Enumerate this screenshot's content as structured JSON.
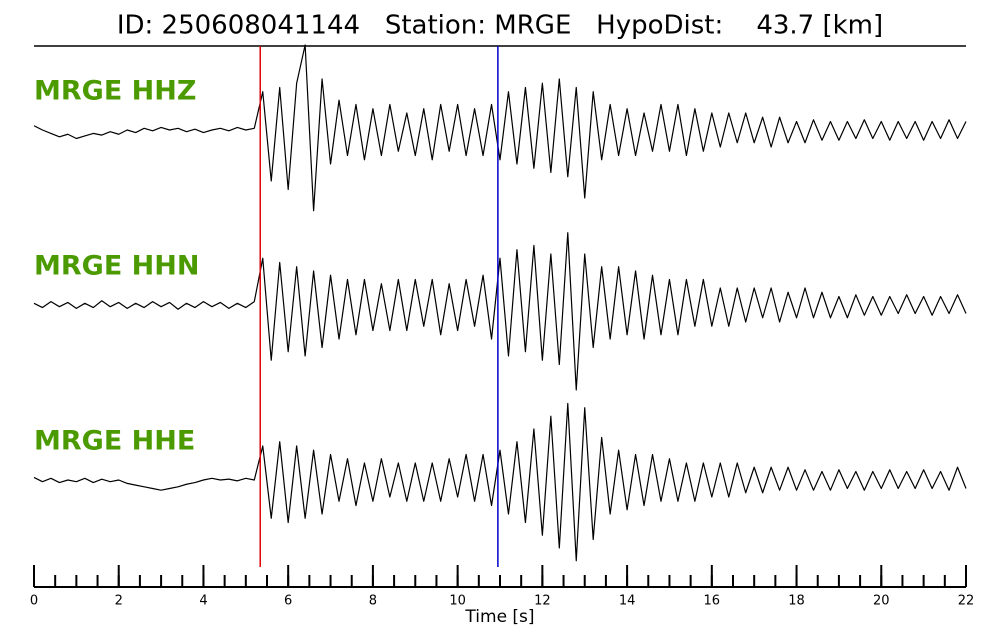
{
  "chart_data": {
    "type": "seismogram",
    "title": "ID: 250608041144   Station: MRGE   HypoDist:    43.7 [km]",
    "xlabel": "Time [s]",
    "xlim": [
      0,
      22
    ],
    "xticks": [
      0,
      2,
      4,
      6,
      8,
      10,
      12,
      14,
      16,
      18,
      20,
      22
    ],
    "xminorticks": [
      0,
      0.5,
      1,
      1.5,
      2,
      2.5,
      3,
      3.5,
      4,
      4.5,
      5,
      5.5,
      6,
      6.5,
      7,
      7.5,
      8,
      8.5,
      9,
      9.5,
      10,
      10.5,
      11,
      11.5,
      12,
      12.5,
      13,
      13.5,
      14,
      14.5,
      15,
      15.5,
      16,
      16.5,
      17,
      17.5,
      18,
      18.5,
      19,
      19.5,
      20,
      20.5,
      21,
      21.5,
      22
    ],
    "picks": [
      {
        "x": 5.34,
        "color": "#e00000"
      },
      {
        "x": 10.95,
        "color": "#0000cc"
      }
    ],
    "ylim": [
      -1,
      1
    ],
    "x": [
      0,
      0.2,
      0.4,
      0.6,
      0.8,
      1,
      1.2,
      1.4,
      1.6,
      1.8,
      2,
      2.2,
      2.4,
      2.6,
      2.8,
      3,
      3.2,
      3.4,
      3.6,
      3.8,
      4,
      4.2,
      4.4,
      4.6,
      4.8,
      5,
      5.2,
      5.4,
      5.6,
      5.8,
      6,
      6.2,
      6.4,
      6.6,
      6.8,
      7,
      7.2,
      7.4,
      7.6,
      7.8,
      8,
      8.2,
      8.4,
      8.6,
      8.8,
      9,
      9.2,
      9.4,
      9.6,
      9.8,
      10,
      10.2,
      10.4,
      10.6,
      10.8,
      11,
      11.2,
      11.4,
      11.6,
      11.8,
      12,
      12.2,
      12.4,
      12.6,
      12.8,
      13,
      13.2,
      13.4,
      13.6,
      13.8,
      14,
      14.2,
      14.4,
      14.6,
      14.8,
      15,
      15.2,
      15.4,
      15.6,
      15.8,
      16,
      16.2,
      16.4,
      16.6,
      16.8,
      17,
      17.2,
      17.4,
      17.6,
      17.8,
      18,
      18.2,
      18.4,
      18.6,
      18.8,
      19,
      19.2,
      19.4,
      19.6,
      19.8,
      20,
      20.2,
      20.4,
      20.6,
      20.8,
      21,
      21.2,
      21.4,
      21.6,
      21.8,
      22
    ],
    "series": [
      {
        "name": "MRGE HHZ",
        "color": "#000000",
        "values": [
          0.05,
          0.0,
          -0.04,
          -0.08,
          -0.05,
          -0.1,
          -0.07,
          -0.04,
          -0.06,
          -0.02,
          -0.05,
          0.0,
          -0.03,
          0.02,
          -0.01,
          0.03,
          0.0,
          0.02,
          -0.02,
          0.01,
          -0.03,
          0.0,
          0.02,
          -0.01,
          0.03,
          0.0,
          0.02,
          0.45,
          -0.6,
          0.5,
          -0.7,
          0.55,
          1.0,
          -0.95,
          0.6,
          -0.4,
          0.35,
          -0.3,
          0.3,
          -0.35,
          0.25,
          -0.3,
          0.3,
          -0.25,
          0.2,
          -0.3,
          0.25,
          -0.35,
          0.3,
          -0.25,
          0.3,
          -0.3,
          0.25,
          -0.3,
          0.3,
          -0.35,
          0.45,
          -0.4,
          0.5,
          -0.45,
          0.55,
          -0.5,
          0.6,
          -0.55,
          0.5,
          -0.8,
          0.45,
          -0.35,
          0.3,
          -0.3,
          0.25,
          -0.3,
          0.2,
          -0.25,
          0.3,
          -0.25,
          0.3,
          -0.3,
          0.25,
          -0.25,
          0.2,
          -0.2,
          0.2,
          -0.15,
          0.2,
          -0.15,
          0.15,
          -0.2,
          0.15,
          -0.15,
          0.1,
          -0.15,
          0.12,
          -0.12,
          0.1,
          -0.12,
          0.1,
          -0.1,
          0.12,
          -0.1,
          0.1,
          -0.12,
          0.1,
          -0.1,
          0.1,
          -0.12,
          0.1,
          -0.1,
          0.12,
          -0.1,
          0.1
        ]
      },
      {
        "name": "MRGE HHN",
        "color": "#000000",
        "values": [
          0.02,
          -0.03,
          0.04,
          -0.02,
          0.03,
          -0.04,
          0.02,
          -0.03,
          0.05,
          -0.02,
          0.03,
          -0.04,
          0.02,
          -0.03,
          0.04,
          -0.02,
          0.03,
          -0.05,
          0.02,
          -0.03,
          0.04,
          -0.02,
          0.03,
          -0.04,
          0.02,
          -0.03,
          0.04,
          0.55,
          -0.65,
          0.5,
          -0.55,
          0.45,
          -0.6,
          0.4,
          -0.5,
          0.35,
          -0.4,
          0.3,
          -0.35,
          0.3,
          -0.3,
          0.25,
          -0.3,
          0.3,
          -0.3,
          0.3,
          -0.25,
          0.3,
          -0.35,
          0.25,
          -0.3,
          0.3,
          -0.25,
          0.35,
          -0.4,
          0.55,
          -0.6,
          0.65,
          -0.55,
          0.7,
          -0.65,
          0.6,
          -0.7,
          0.85,
          -1.0,
          0.6,
          -0.5,
          0.45,
          -0.4,
          0.45,
          -0.35,
          0.4,
          -0.4,
          0.35,
          -0.35,
          0.3,
          -0.35,
          0.3,
          -0.25,
          0.3,
          -0.25,
          0.2,
          -0.25,
          0.2,
          -0.2,
          0.2,
          -0.15,
          0.2,
          -0.2,
          0.15,
          -0.15,
          0.2,
          -0.15,
          0.15,
          -0.15,
          0.1,
          -0.15,
          0.12,
          -0.12,
          0.1,
          -0.12,
          0.1,
          -0.1,
          0.12,
          -0.1,
          0.1,
          -0.12,
          0.1,
          -0.1,
          0.12,
          -0.1
        ]
      },
      {
        "name": "MRGE HHE",
        "color": "#000000",
        "values": [
          0.03,
          -0.02,
          0.02,
          -0.03,
          0.0,
          -0.02,
          0.02,
          -0.03,
          0.01,
          -0.02,
          0.0,
          -0.04,
          -0.06,
          -0.08,
          -0.1,
          -0.12,
          -0.1,
          -0.08,
          -0.05,
          -0.03,
          0.0,
          0.02,
          0.0,
          0.01,
          -0.01,
          0.02,
          0.0,
          0.4,
          -0.45,
          0.45,
          -0.5,
          0.4,
          -0.45,
          0.35,
          -0.4,
          0.3,
          -0.25,
          0.25,
          -0.3,
          0.2,
          -0.25,
          0.25,
          -0.2,
          0.2,
          -0.25,
          0.2,
          -0.25,
          0.2,
          -0.25,
          0.25,
          -0.2,
          0.3,
          -0.25,
          0.3,
          -0.3,
          0.35,
          -0.4,
          0.45,
          -0.5,
          0.6,
          -0.65,
          0.75,
          -0.8,
          0.9,
          -0.95,
          0.85,
          -0.7,
          0.5,
          -0.4,
          0.35,
          -0.35,
          0.3,
          -0.3,
          0.3,
          -0.25,
          0.25,
          -0.25,
          0.2,
          -0.25,
          0.2,
          -0.2,
          0.2,
          -0.2,
          0.2,
          -0.15,
          0.15,
          -0.15,
          0.15,
          -0.12,
          0.15,
          -0.12,
          0.12,
          -0.12,
          0.1,
          -0.12,
          0.12,
          -0.1,
          0.1,
          -0.12,
          0.1,
          -0.1,
          0.12,
          -0.1,
          0.1,
          -0.1,
          0.12,
          -0.1,
          0.1,
          -0.12,
          0.15,
          -0.1
        ]
      }
    ]
  }
}
